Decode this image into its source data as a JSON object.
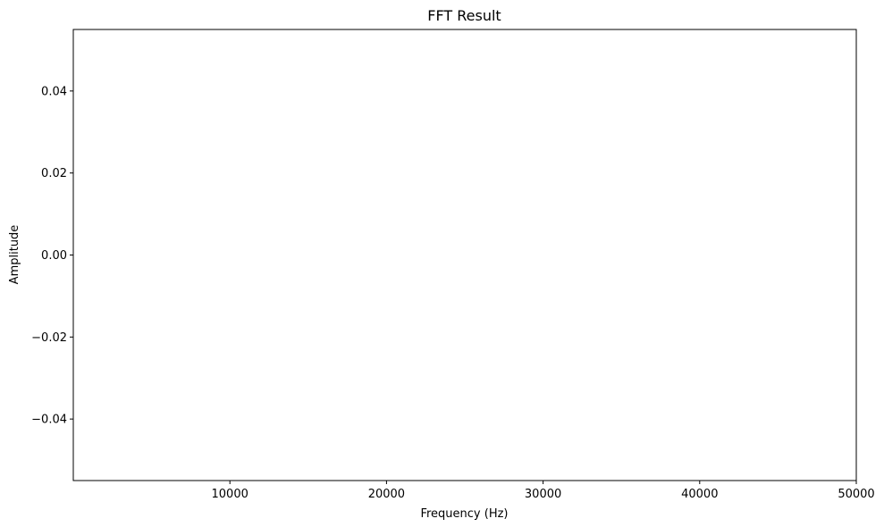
{
  "chart_data": {
    "type": "line",
    "title": "FFT Result",
    "xlabel": "Frequency (Hz)",
    "ylabel": "Amplitude",
    "xlim": [
      0,
      50000
    ],
    "ylim": [
      -0.055,
      0.055
    ],
    "x_ticks": [
      {
        "value": 10000,
        "label": "10000"
      },
      {
        "value": 20000,
        "label": "20000"
      },
      {
        "value": 30000,
        "label": "30000"
      },
      {
        "value": 40000,
        "label": "40000"
      },
      {
        "value": 50000,
        "label": "50000"
      }
    ],
    "y_ticks": [
      {
        "value": 0.04,
        "label": "0.04"
      },
      {
        "value": 0.02,
        "label": "0.02"
      },
      {
        "value": 0.0,
        "label": "0.00"
      },
      {
        "value": -0.02,
        "label": "−0.02"
      },
      {
        "value": -0.04,
        "label": "−0.04"
      }
    ],
    "series": [],
    "grid": false,
    "legend": false
  }
}
